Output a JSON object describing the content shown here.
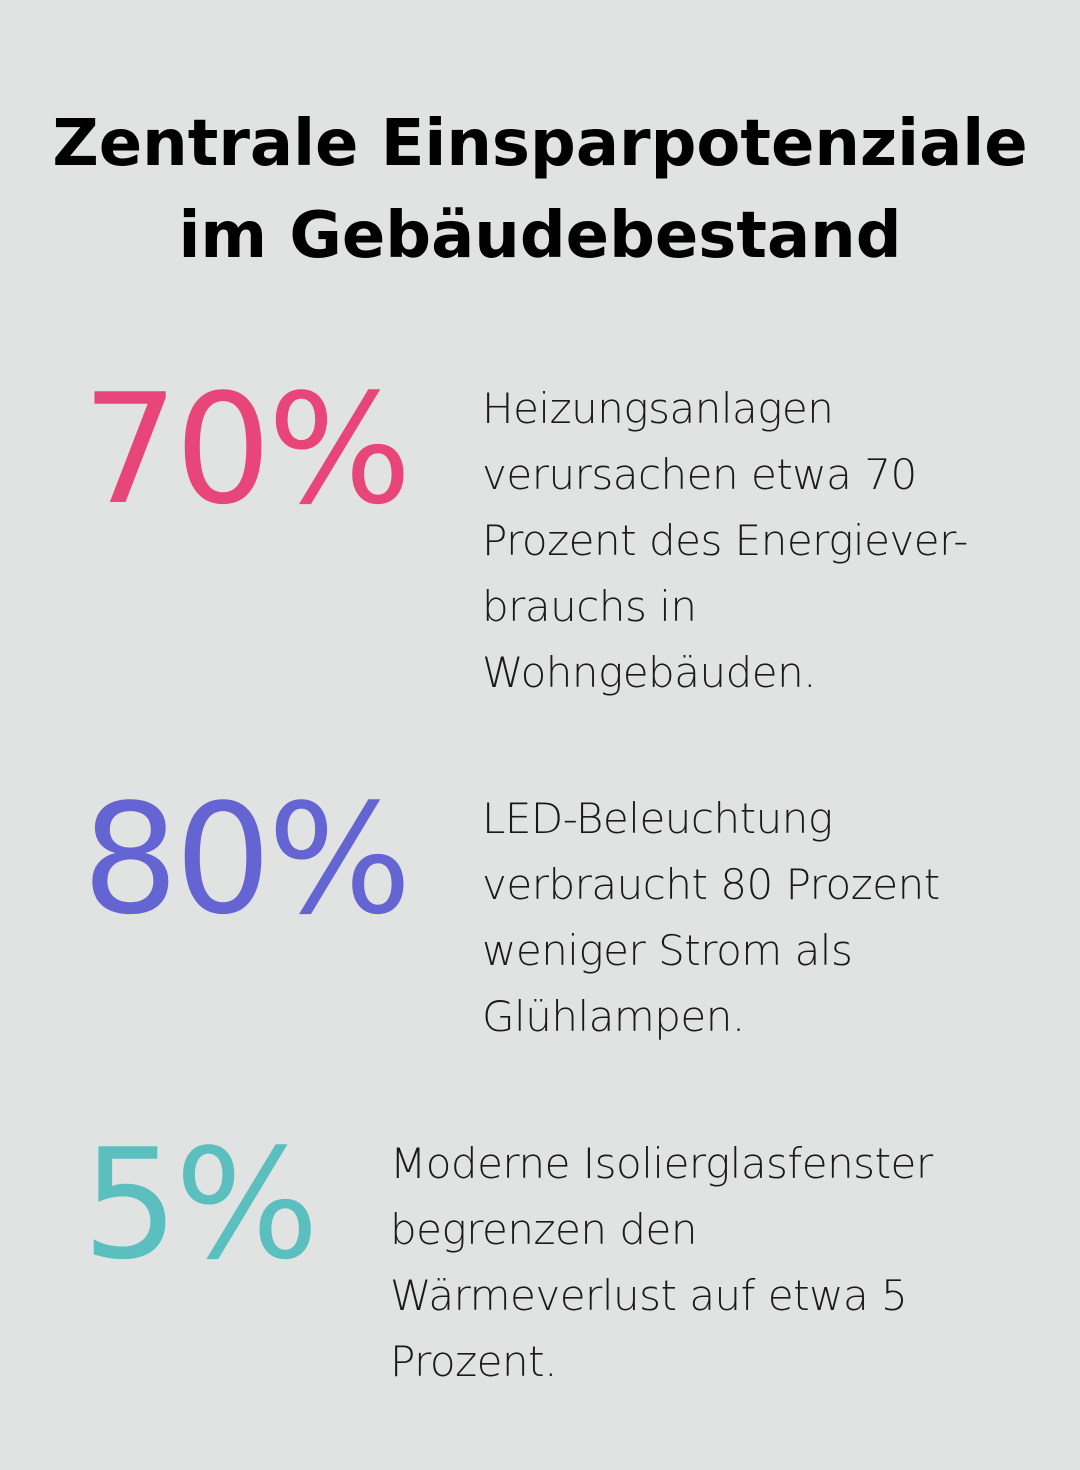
{
  "title": {
    "line1": "Zentrale Einsparpotenziale",
    "line2": "im Gebäudebestand"
  },
  "stats": [
    {
      "value": "70%",
      "color": "#e8457a",
      "lines": [
        "Heizungsanlagen",
        "verursachen etwa 70",
        "Prozent des Energiever-",
        "brauchs in",
        "Wohngebäuden."
      ]
    },
    {
      "value": "80%",
      "color": "#6464d2",
      "lines": [
        "LED-Beleuchtung",
        "verbraucht 80 Prozent",
        "weniger Strom als",
        "Glühlampen."
      ]
    },
    {
      "value": "5%",
      "color": "#5bbfbf",
      "lines": [
        "Moderne Isolierglasfenster",
        "begrenzen den",
        "Wärmeverlust auf etwa 5",
        "Prozent."
      ]
    }
  ]
}
